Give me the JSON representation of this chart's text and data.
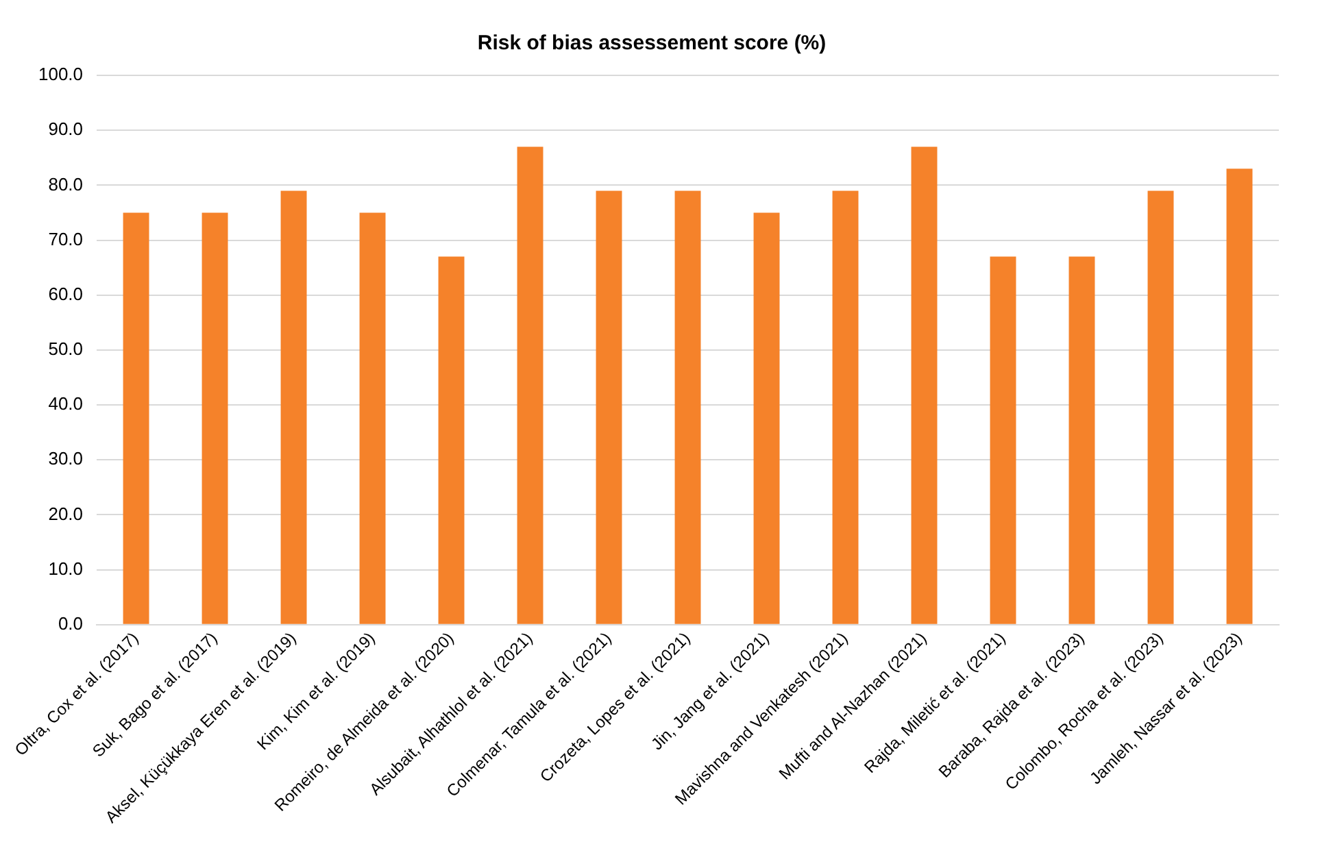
{
  "chart_data": {
    "type": "bar",
    "title": "Risk of bias assessement score (%)",
    "categories": [
      "Oltra, Cox et al. (2017)",
      "Suk, Bago et al. (2017)",
      "Aksel, Küçükkaya Eren et al. (2019)",
      "Kim, Kim et al. (2019)",
      "Romeiro, de Almeida et al. (2020)",
      "Alsubait, Alhathlol et al. (2021)",
      "Colmenar, Tamula et al. (2021)",
      "Crozeta, Lopes et al. (2021)",
      "Jin, Jang et al. (2021)",
      "Mavishna and Venkatesh (2021)",
      "Mufti and Al-Nazhan (2021)",
      "Rajda, Miletić et al. (2021)",
      "Baraba, Rajda et al. (2023)",
      "Colombo, Rocha et al. (2023)",
      "Jamleh, Nassar et al. (2023)"
    ],
    "values": [
      75,
      75,
      79,
      75,
      67,
      87,
      79,
      79,
      75,
      79,
      87,
      67,
      67,
      79,
      83
    ],
    "color": "#f5822a",
    "ylim": [
      0,
      100
    ],
    "yticks": [
      {
        "value": 0,
        "label": "0.0"
      },
      {
        "value": 10,
        "label": "10.0"
      },
      {
        "value": 20,
        "label": "20.0"
      },
      {
        "value": 30,
        "label": "30.0"
      },
      {
        "value": 40,
        "label": "40.0"
      },
      {
        "value": 50,
        "label": "50.0"
      },
      {
        "value": 60,
        "label": "60.0"
      },
      {
        "value": 70,
        "label": "70.0"
      },
      {
        "value": 80,
        "label": "80.0"
      },
      {
        "value": 90,
        "label": "90.0"
      },
      {
        "value": 100,
        "label": "100.0"
      }
    ],
    "grid": "y"
  }
}
